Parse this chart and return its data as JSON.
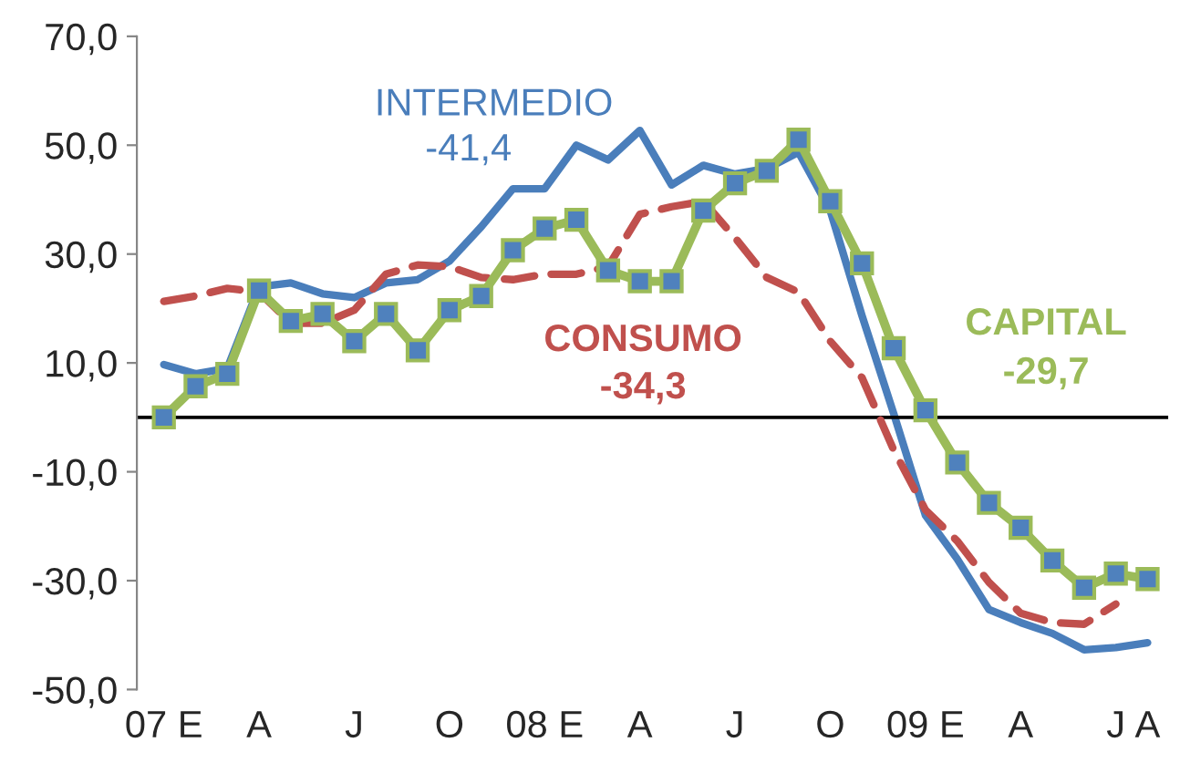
{
  "chart_data": {
    "type": "line",
    "categories": [
      "07 E",
      null,
      null,
      "A",
      null,
      null,
      "J",
      null,
      null,
      "O",
      null,
      null,
      "08 E",
      null,
      null,
      "A",
      null,
      null,
      "J",
      null,
      null,
      "O",
      null,
      null,
      "09 E",
      null,
      null,
      "A",
      null,
      null,
      "J",
      "A"
    ],
    "series": [
      {
        "name": "INTERMEDIO",
        "color": "#4a7ebb",
        "line_style": "solid",
        "marker": "none",
        "values": [
          9.7,
          8,
          9,
          24,
          24.7,
          22.7,
          22,
          24.7,
          25.3,
          28.7,
          35,
          42,
          42,
          50,
          47.3,
          52.7,
          42.7,
          46.3,
          44.7,
          45.7,
          48.7,
          38,
          18.7,
          0.7,
          -18,
          -26,
          -35.3,
          -37.7,
          -39.7,
          -42.7,
          -42.3,
          -41.4
        ]
      },
      {
        "name": "CONSUMO",
        "color": "#c0504d",
        "line_style": "dashed",
        "marker": "none",
        "values": [
          21.3,
          22.3,
          23.7,
          23,
          17.3,
          17.3,
          19.7,
          26.3,
          28,
          27.7,
          25.7,
          25.3,
          26.3,
          26.3,
          27.7,
          37.3,
          38.7,
          39.7,
          33,
          25.7,
          23,
          14,
          7.3,
          -6,
          -17,
          -22.7,
          -30.3,
          -36,
          -37.7,
          -38,
          -34.3,
          null
        ]
      },
      {
        "name": "CAPITAL",
        "color": "#9bbb59",
        "line_style": "solid",
        "marker": "square",
        "values": [
          0,
          5.7,
          8,
          23.3,
          17.7,
          19,
          14,
          19,
          12.3,
          19.7,
          22.3,
          30.7,
          34.7,
          36.3,
          27,
          25,
          25,
          38,
          43,
          45.3,
          51,
          39.7,
          28.3,
          12.7,
          1.3,
          -8.3,
          -15.7,
          -20.3,
          -26.3,
          -31.3,
          -28.7,
          -29.7
        ]
      }
    ],
    "annotations": [
      "-41,4",
      "-34,3",
      "-29,7"
    ],
    "ylim": [
      -50,
      70
    ],
    "yticks": [
      {
        "value": -50,
        "label": "-50,0"
      },
      {
        "value": -30,
        "label": "-30,0"
      },
      {
        "value": -10,
        "label": "-10,0"
      },
      {
        "value": 10,
        "label": "10,0"
      },
      {
        "value": 30,
        "label": "30,0"
      },
      {
        "value": 50,
        "label": "50,0"
      },
      {
        "value": 70,
        "label": "70,0"
      }
    ],
    "ref_lines": [
      {
        "axis": "y",
        "value": 0,
        "color": "#000000",
        "line_style": "solid"
      }
    ],
    "grid": false,
    "legend": false
  }
}
